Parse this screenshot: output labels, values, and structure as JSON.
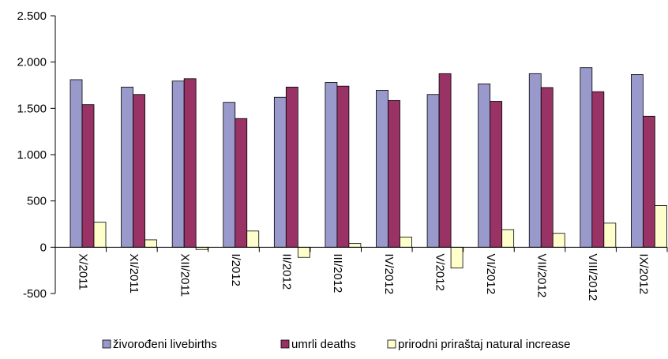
{
  "chart_data": {
    "type": "bar",
    "categories": [
      "X/2011",
      "XI/2011",
      "XII/2011",
      "I/2012",
      "II/2012",
      "III/2012",
      "IV/2012",
      "V/2012",
      "VI/2012",
      "VII/2012",
      "VIII/2012",
      "IX/2012"
    ],
    "series": [
      {
        "name": "živorođeni livebirths",
        "color": "#9999cc",
        "values": [
          1810,
          1730,
          1795,
          1565,
          1620,
          1780,
          1695,
          1650,
          1765,
          1875,
          1940,
          1865
        ]
      },
      {
        "name": "umrli deaths",
        "color": "#993366",
        "values": [
          1540,
          1650,
          1820,
          1390,
          1730,
          1740,
          1585,
          1875,
          1575,
          1725,
          1680,
          1415
        ]
      },
      {
        "name": "prirodni priraštaj natural increase",
        "color": "#ffffcc",
        "values": [
          270,
          80,
          -25,
          175,
          -110,
          40,
          110,
          -225,
          190,
          150,
          260,
          450
        ]
      }
    ],
    "ylim": [
      -500,
      2500
    ],
    "yticks": [
      -500,
      0,
      500,
      1000,
      1500,
      2000,
      2500
    ],
    "ytick_labels": [
      "-500",
      "0",
      "500",
      "1.000",
      "1.500",
      "2.000",
      "2.500"
    ],
    "xlabel": "",
    "ylabel": "",
    "title": "",
    "grid": false,
    "legend_position": "bottom"
  }
}
